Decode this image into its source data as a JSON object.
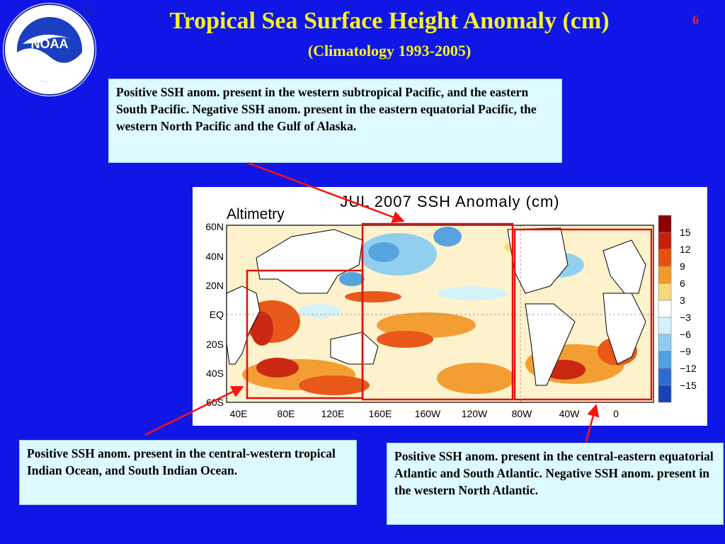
{
  "slide": {
    "title": "Tropical Sea Surface Height Anomaly (cm)",
    "subtitle": "(Climatology 1993-2005)",
    "page_number": "6",
    "logo": {
      "name": "NOAA",
      "ring_text": "NATIONAL OCEANIC AND ATMOSPHERIC ADMINISTRATION · U.S. DEPARTMENT OF COMMERCE"
    }
  },
  "notes": {
    "pacific": "Positive SSH anom. present in the western subtropical Pacific, and the eastern South Pacific. Negative SSH anom. present in the eastern equatorial Pacific, the western North Pacific and the Gulf of Alaska.",
    "indian": "Positive SSH anom. present in the central-western  tropical Indian Ocean, and South Indian Ocean.",
    "atlantic": "Positive SSH anom. present in the central-eastern  equatorial Atlantic and South Atlantic. Negative SSH anom. present in the western North Atlantic."
  },
  "map": {
    "title": "JUL  2007  SSH  Anomaly  (cm)",
    "source_label": "Altimetry",
    "lat_labels": [
      "60N",
      "40N",
      "20N",
      "EQ",
      "20S",
      "40S",
      "60S"
    ],
    "lon_labels": [
      "40E",
      "80E",
      "120E",
      "160E",
      "160W",
      "120W",
      "80W",
      "40W",
      "0"
    ],
    "colorbar": {
      "labels": [
        "15",
        "12",
        "9",
        "6",
        "3",
        "−3",
        "−6",
        "−9",
        "−12",
        "−15"
      ],
      "colors": [
        "#8b0000",
        "#c81e0a",
        "#e8500f",
        "#f39a2a",
        "#f8d77a",
        "#ffffff",
        "#d4f1fb",
        "#8dcdf0",
        "#4f9fe2",
        "#2d6cd6",
        "#1742b8"
      ]
    },
    "highlight_color": "#e01010"
  }
}
